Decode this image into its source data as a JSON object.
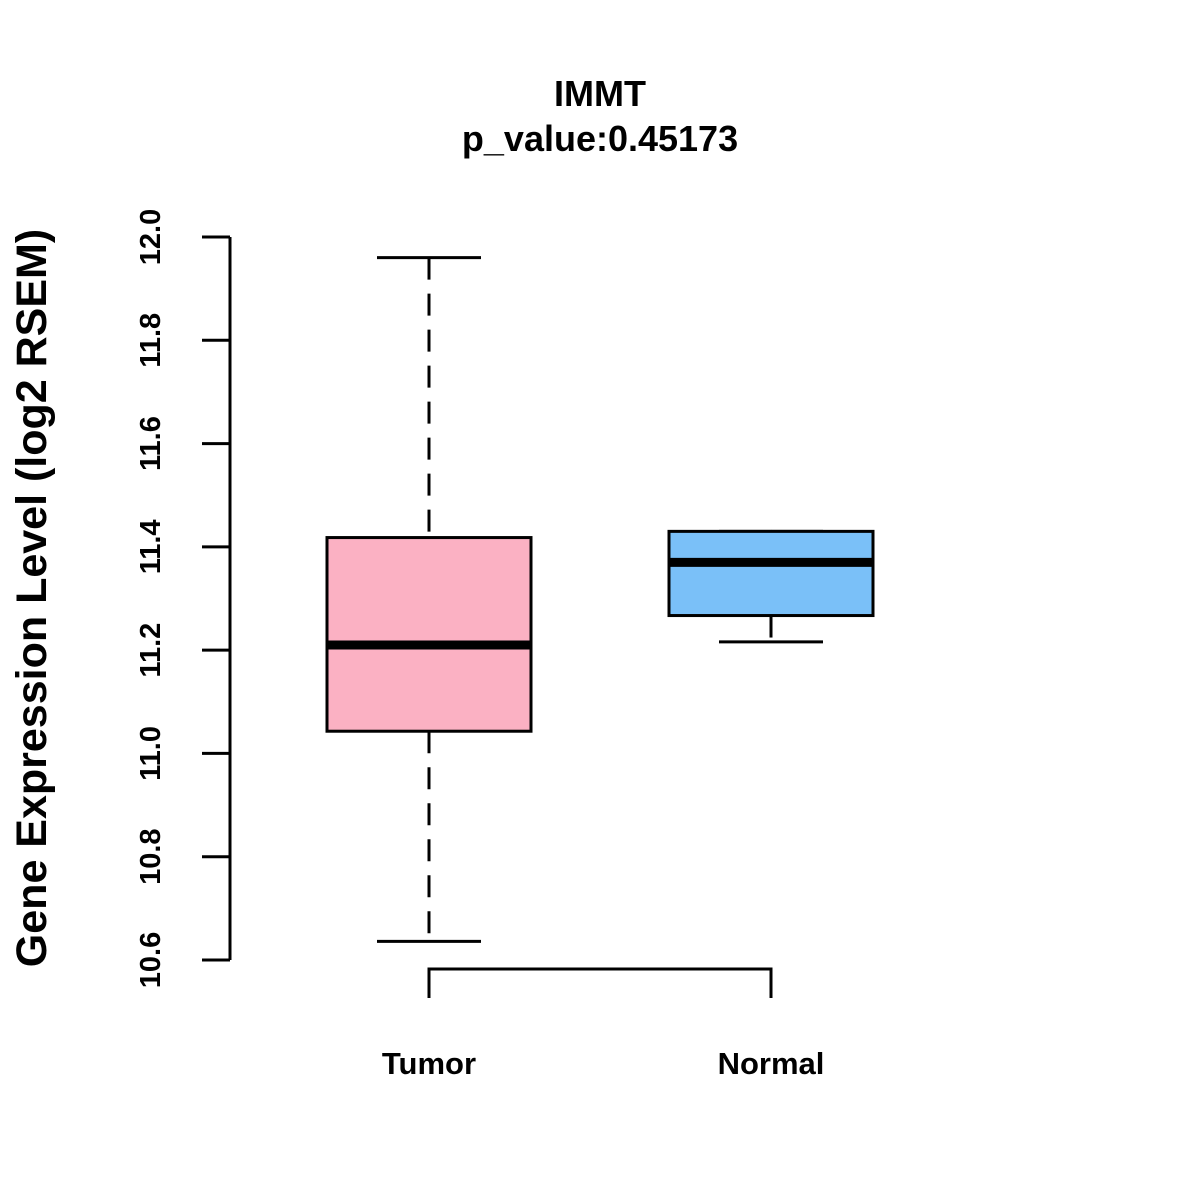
{
  "chart_data": {
    "type": "box",
    "title": "IMMT",
    "subtitle": "p_value:0.45173",
    "ylabel": "Gene Expression Level (log2 RSEM)",
    "xlabel": "",
    "ylim": [
      10.6,
      12.0
    ],
    "yticks": [
      "10.6",
      "10.8",
      "11.0",
      "11.2",
      "11.4",
      "11.6",
      "11.8",
      "12.0"
    ],
    "categories": [
      "Tumor",
      "Normal"
    ],
    "boxes": [
      {
        "category": "Tumor",
        "min": 10.636,
        "q1": 11.043,
        "median": 11.21,
        "q3": 11.418,
        "max": 11.96,
        "color": "#FBB1C3"
      },
      {
        "category": "Normal",
        "min": 11.216,
        "q1": 11.267,
        "median": 11.37,
        "q3": 11.43,
        "max": 11.43,
        "color": "#7AC0F8"
      }
    ],
    "grid": false,
    "legend": "none",
    "comparison_bracket": true
  }
}
